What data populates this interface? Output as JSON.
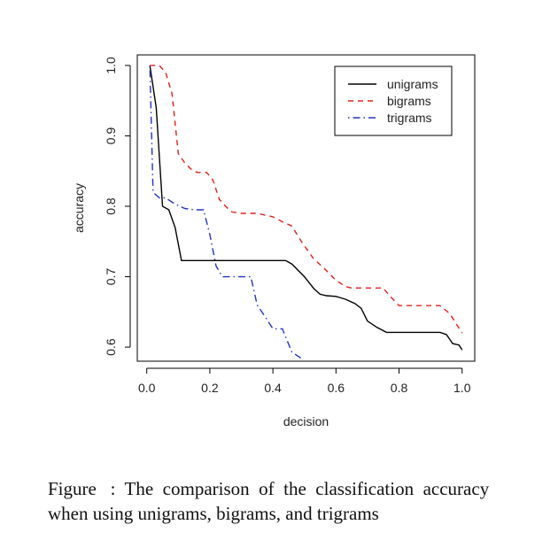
{
  "chart_data": {
    "type": "line",
    "title": "",
    "xlabel": "decision",
    "ylabel": "accuracy",
    "xlim": [
      -0.03,
      1.04
    ],
    "ylim": [
      0.58,
      1.015
    ],
    "x_ticks": [
      0.0,
      0.2,
      0.4,
      0.6,
      0.8,
      1.0
    ],
    "x_tick_labels": [
      "0.0",
      "0.2",
      "0.4",
      "0.6",
      "0.8",
      "1.0"
    ],
    "y_ticks": [
      0.6,
      0.7,
      0.8,
      0.9,
      1.0
    ],
    "y_tick_labels": [
      "0.6",
      "0.7",
      "0.8",
      "0.9",
      "1.0"
    ],
    "grid": false,
    "legend_position": "top-right",
    "series": [
      {
        "name": "unigrams",
        "color": "#000000",
        "dash": "solid",
        "points": [
          [
            0.01,
            1.0
          ],
          [
            0.03,
            0.94
          ],
          [
            0.05,
            0.8
          ],
          [
            0.07,
            0.795
          ],
          [
            0.09,
            0.77
          ],
          [
            0.11,
            0.723
          ],
          [
            0.2,
            0.723
          ],
          [
            0.3,
            0.723
          ],
          [
            0.4,
            0.723
          ],
          [
            0.44,
            0.723
          ],
          [
            0.46,
            0.718
          ],
          [
            0.5,
            0.7
          ],
          [
            0.53,
            0.683
          ],
          [
            0.55,
            0.675
          ],
          [
            0.57,
            0.673
          ],
          [
            0.6,
            0.672
          ],
          [
            0.63,
            0.668
          ],
          [
            0.66,
            0.662
          ],
          [
            0.68,
            0.655
          ],
          [
            0.7,
            0.637
          ],
          [
            0.73,
            0.628
          ],
          [
            0.76,
            0.621
          ],
          [
            0.8,
            0.621
          ],
          [
            0.85,
            0.621
          ],
          [
            0.9,
            0.621
          ],
          [
            0.93,
            0.621
          ],
          [
            0.95,
            0.618
          ],
          [
            0.97,
            0.605
          ],
          [
            0.99,
            0.603
          ],
          [
            1.0,
            0.596
          ]
        ]
      },
      {
        "name": "bigrams",
        "color": "#e0201c",
        "dash": "dashed",
        "points": [
          [
            0.01,
            1.0
          ],
          [
            0.04,
            1.0
          ],
          [
            0.06,
            0.99
          ],
          [
            0.08,
            0.96
          ],
          [
            0.1,
            0.875
          ],
          [
            0.12,
            0.862
          ],
          [
            0.14,
            0.853
          ],
          [
            0.16,
            0.848
          ],
          [
            0.19,
            0.848
          ],
          [
            0.21,
            0.837
          ],
          [
            0.23,
            0.81
          ],
          [
            0.25,
            0.8
          ],
          [
            0.27,
            0.792
          ],
          [
            0.3,
            0.79
          ],
          [
            0.35,
            0.79
          ],
          [
            0.4,
            0.785
          ],
          [
            0.43,
            0.778
          ],
          [
            0.46,
            0.772
          ],
          [
            0.49,
            0.75
          ],
          [
            0.53,
            0.725
          ],
          [
            0.56,
            0.713
          ],
          [
            0.6,
            0.695
          ],
          [
            0.63,
            0.686
          ],
          [
            0.65,
            0.684
          ],
          [
            0.7,
            0.684
          ],
          [
            0.75,
            0.684
          ],
          [
            0.77,
            0.673
          ],
          [
            0.8,
            0.659
          ],
          [
            0.85,
            0.659
          ],
          [
            0.93,
            0.659
          ],
          [
            0.96,
            0.648
          ],
          [
            1.0,
            0.62
          ]
        ]
      },
      {
        "name": "trigrams",
        "color": "#2233cc",
        "dash": "dotdash",
        "points": [
          [
            0.01,
            1.0
          ],
          [
            0.02,
            0.82
          ],
          [
            0.04,
            0.812
          ],
          [
            0.06,
            0.812
          ],
          [
            0.09,
            0.803
          ],
          [
            0.12,
            0.797
          ],
          [
            0.15,
            0.795
          ],
          [
            0.18,
            0.795
          ],
          [
            0.2,
            0.76
          ],
          [
            0.22,
            0.715
          ],
          [
            0.24,
            0.7
          ],
          [
            0.28,
            0.7
          ],
          [
            0.33,
            0.7
          ],
          [
            0.35,
            0.66
          ],
          [
            0.38,
            0.64
          ],
          [
            0.4,
            0.626
          ],
          [
            0.43,
            0.626
          ],
          [
            0.46,
            0.593
          ],
          [
            0.49,
            0.584
          ]
        ]
      }
    ]
  },
  "caption": {
    "line1": "Figure   :  The  comparison  of  the  classification  accuracy",
    "line2": "when using unigrams, bigrams, and trigrams"
  }
}
